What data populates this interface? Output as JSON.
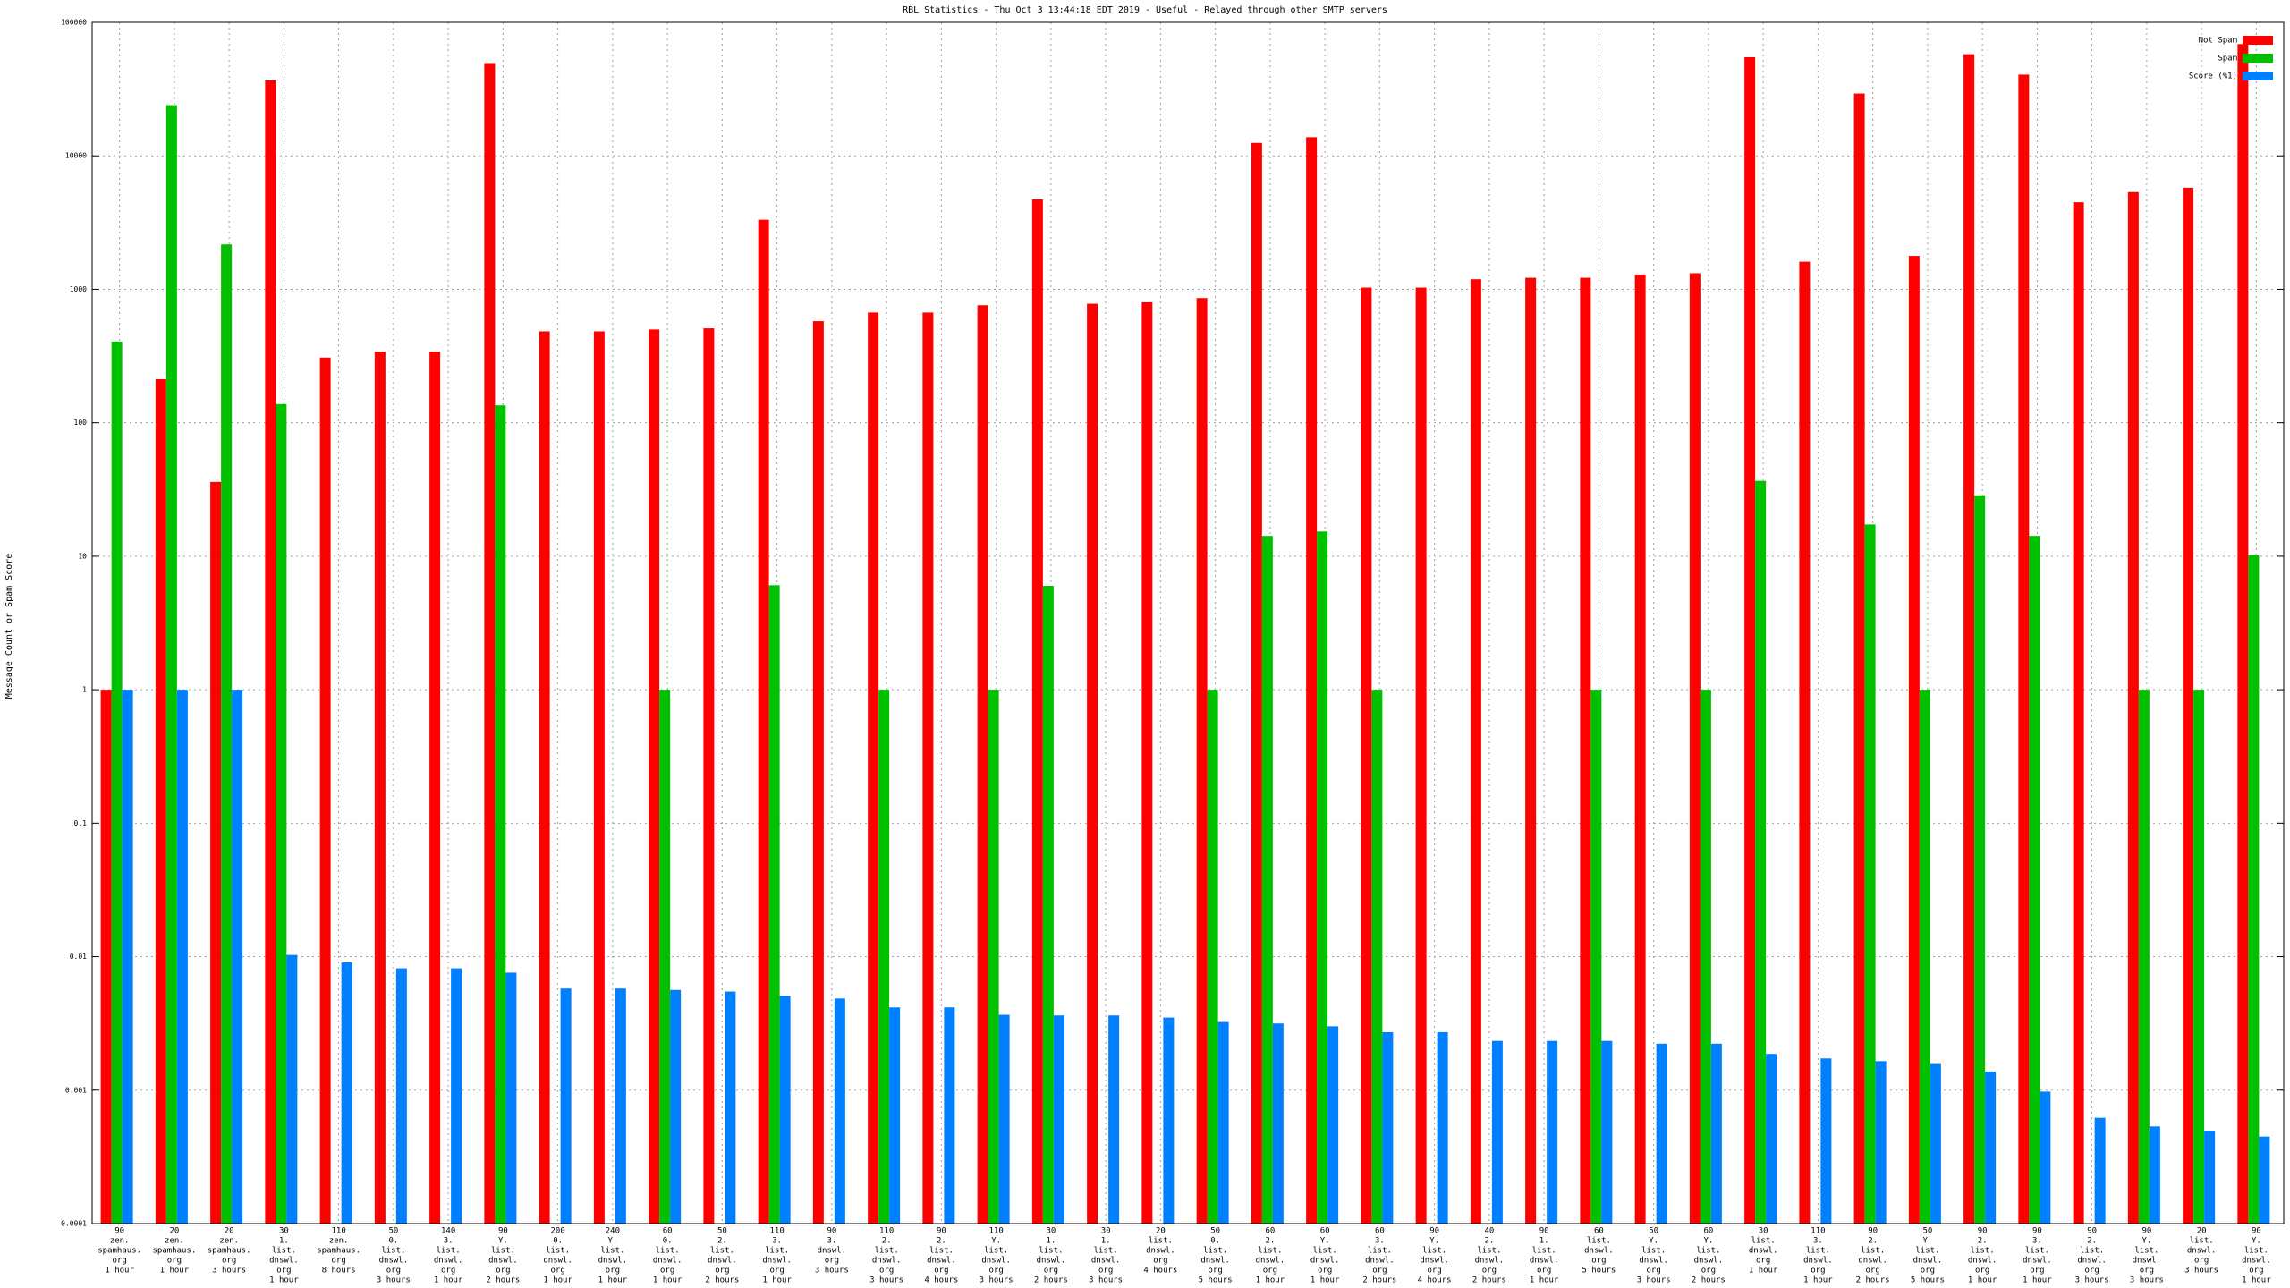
{
  "chart_data": {
    "type": "bar",
    "title": "RBL Statistics - Thu Oct  3 13:44:18 EDT 2019 - Useful - Relayed through other SMTP servers",
    "y_label": "Message Count or Spam Score",
    "log_scale": true,
    "grid": true,
    "legend": "top-right",
    "ylim": [
      0.0001,
      100000
    ],
    "yticks": [
      0.0001,
      0.001,
      0.01,
      0.1,
      1,
      10,
      100,
      1000,
      10000,
      100000
    ],
    "categories": [
      [
        "90",
        "zen.",
        "spamhaus.",
        "org",
        "1 hour"
      ],
      [
        "20",
        "zen.",
        "spamhaus.",
        "org",
        "1 hour"
      ],
      [
        "20",
        "zen.",
        "spamhaus.",
        "org",
        "3 hours"
      ],
      [
        "30",
        "1.",
        "list.",
        "dnswl.",
        "org",
        "1 hour"
      ],
      [
        "110",
        "zen.",
        "spamhaus.",
        "org",
        "8 hours"
      ],
      [
        "50",
        "0.",
        "list.",
        "dnswl.",
        "org",
        "3 hours"
      ],
      [
        "140",
        "3.",
        "list.",
        "dnswl.",
        "org",
        "1 hour"
      ],
      [
        "90",
        "Y.",
        "list.",
        "dnswl.",
        "org",
        "2 hours"
      ],
      [
        "200",
        "0.",
        "list.",
        "dnswl.",
        "org",
        "1 hour"
      ],
      [
        "240",
        "Y.",
        "list.",
        "dnswl.",
        "org",
        "1 hour"
      ],
      [
        "60",
        "0.",
        "list.",
        "dnswl.",
        "org",
        "1 hour"
      ],
      [
        "50",
        "2.",
        "list.",
        "dnswl.",
        "org",
        "2 hours"
      ],
      [
        "110",
        "3.",
        "list.",
        "dnswl.",
        "org",
        "1 hour"
      ],
      [
        "90",
        "3.",
        "dnswl.",
        "org",
        "3 hours"
      ],
      [
        "110",
        "2.",
        "list.",
        "dnswl.",
        "org",
        "3 hours"
      ],
      [
        "90",
        "2.",
        "list.",
        "dnswl.",
        "org",
        "4 hours"
      ],
      [
        "110",
        "Y.",
        "list.",
        "dnswl.",
        "org",
        "3 hours"
      ],
      [
        "30",
        "1.",
        "list.",
        "dnswl.",
        "org",
        "2 hours"
      ],
      [
        "30",
        "1.",
        "list.",
        "dnswl.",
        "org",
        "3 hours"
      ],
      [
        "20",
        "list.",
        "dnswl.",
        "org",
        "4 hours"
      ],
      [
        "50",
        "0.",
        "list.",
        "dnswl.",
        "org",
        "5 hours"
      ],
      [
        "60",
        "2.",
        "list.",
        "dnswl.",
        "org",
        "1 hour"
      ],
      [
        "60",
        "Y.",
        "list.",
        "dnswl.",
        "org",
        "1 hour"
      ],
      [
        "60",
        "3.",
        "list.",
        "dnswl.",
        "org",
        "2 hours"
      ],
      [
        "90",
        "Y.",
        "list.",
        "dnswl.",
        "org",
        "4 hours"
      ],
      [
        "40",
        "2.",
        "list.",
        "dnswl.",
        "org",
        "2 hours"
      ],
      [
        "90",
        "1.",
        "list.",
        "dnswl.",
        "org",
        "1 hour"
      ],
      [
        "60",
        "list.",
        "dnswl.",
        "org",
        "5 hours"
      ],
      [
        "50",
        "Y.",
        "list.",
        "dnswl.",
        "org",
        "3 hours"
      ],
      [
        "60",
        "Y.",
        "list.",
        "dnswl.",
        "org",
        "2 hours"
      ],
      [
        "30",
        "list.",
        "dnswl.",
        "org",
        "1 hour"
      ],
      [
        "110",
        "3.",
        "list.",
        "dnswl.",
        "org",
        "1 hour"
      ],
      [
        "90",
        "2.",
        "list.",
        "dnswl.",
        "org",
        "2 hours"
      ],
      [
        "50",
        "Y.",
        "list.",
        "dnswl.",
        "org",
        "5 hours"
      ],
      [
        "90",
        "2.",
        "list.",
        "dnswl.",
        "org",
        "1 hour"
      ],
      [
        "90",
        "3.",
        "list.",
        "dnswl.",
        "org",
        "1 hour"
      ],
      [
        "90",
        "2.",
        "list.",
        "dnswl.",
        "org",
        "3 hours"
      ],
      [
        "90",
        "Y.",
        "list.",
        "dnswl.",
        "org",
        "3 hours"
      ],
      [
        "20",
        "list.",
        "dnswl.",
        "org",
        "3 hours"
      ],
      [
        "90",
        "Y.",
        "list.",
        "dnswl.",
        "org",
        "1 hour"
      ]
    ],
    "series": [
      {
        "name": "Not Spam",
        "color": "#ff0000",
        "values": [
          1,
          212,
          36,
          36700,
          308,
          341,
          341,
          49600,
          484,
          484,
          500,
          510,
          3320,
          577,
          670,
          670,
          760,
          4720,
          780,
          800,
          860,
          12500,
          13800,
          1030,
          1030,
          1190,
          1220,
          1220,
          1290,
          1320,
          54800,
          1610,
          29300,
          1780,
          57700,
          40600,
          4490,
          5350,
          5770,
          68700
        ]
      },
      {
        "name": "Spam",
        "color": "#00c000",
        "values": [
          406,
          24000,
          2170,
          138,
          null,
          null,
          null,
          135,
          null,
          null,
          1,
          null,
          6.06,
          null,
          1,
          null,
          1,
          6,
          null,
          null,
          1,
          14.2,
          15.3,
          1,
          null,
          null,
          null,
          1,
          null,
          1,
          36.7,
          null,
          17.3,
          1,
          28.6,
          14.2,
          null,
          1,
          1,
          10.2
        ]
      },
      {
        "name": "Score (%1)",
        "color": "#0080ff",
        "values": [
          1,
          1,
          1,
          0.0103,
          0.00905,
          0.00818,
          0.00818,
          0.00759,
          0.00577,
          0.00577,
          0.00563,
          0.00548,
          0.00509,
          0.00486,
          0.00417,
          0.00417,
          0.00367,
          0.00363,
          0.00363,
          0.0035,
          0.00324,
          0.00316,
          0.00301,
          0.00272,
          0.00272,
          0.00234,
          0.00234,
          0.00234,
          0.00223,
          0.00223,
          0.00187,
          0.00173,
          0.00165,
          0.00157,
          0.00138,
          0.000975,
          0.000621,
          0.000535,
          0.000497,
          0.000449
        ]
      }
    ]
  }
}
